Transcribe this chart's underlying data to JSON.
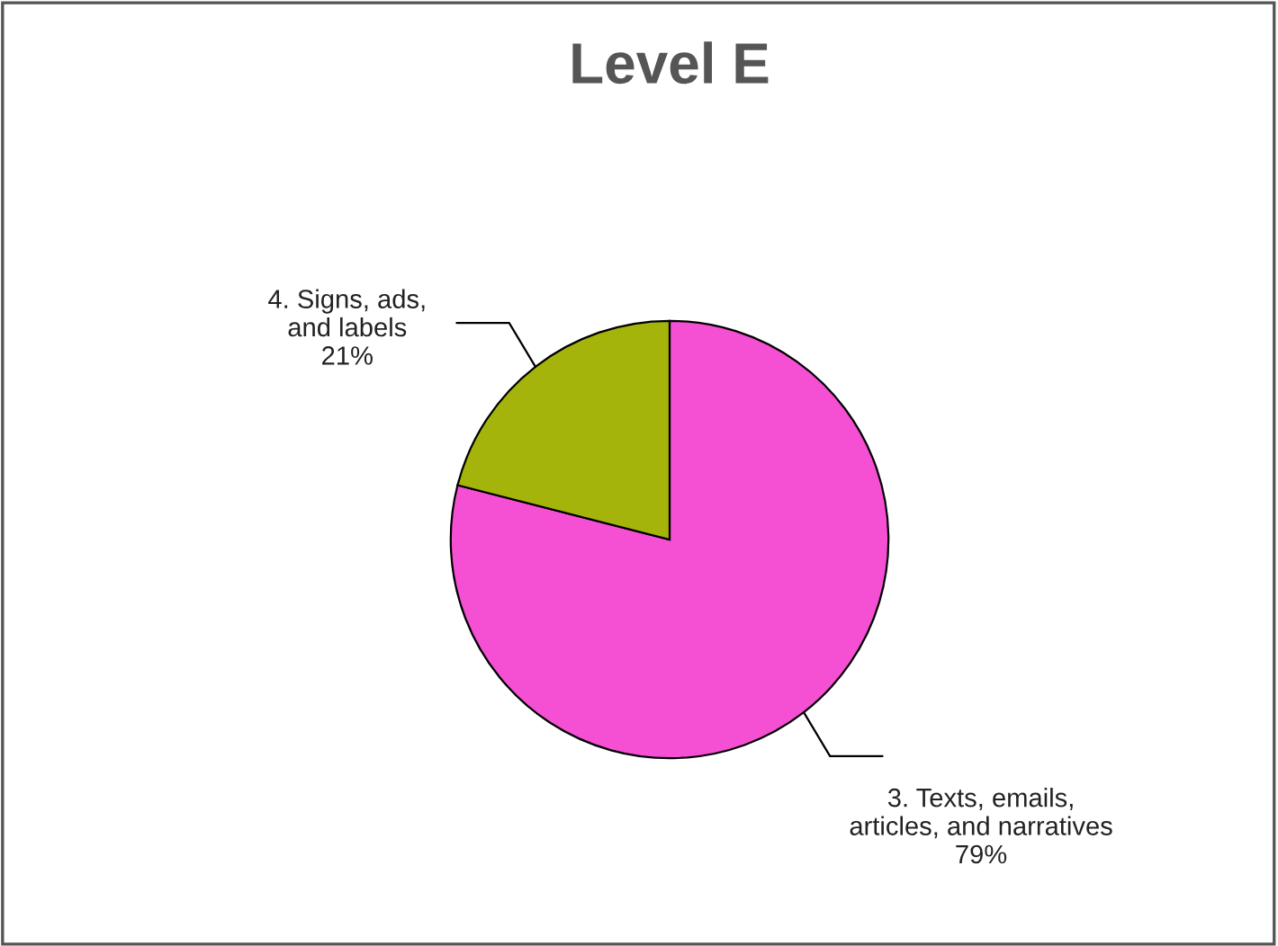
{
  "chart_data": {
    "type": "pie",
    "title": "Level E",
    "categories": [
      "3. Texts, emails,\narticles, and narratives",
      "4. Signs, ads,\nand labels"
    ],
    "values": [
      79,
      21
    ],
    "colors": [
      "#f54fd4",
      "#a4b40a"
    ],
    "value_labels": [
      "79%",
      "21%"
    ]
  }
}
